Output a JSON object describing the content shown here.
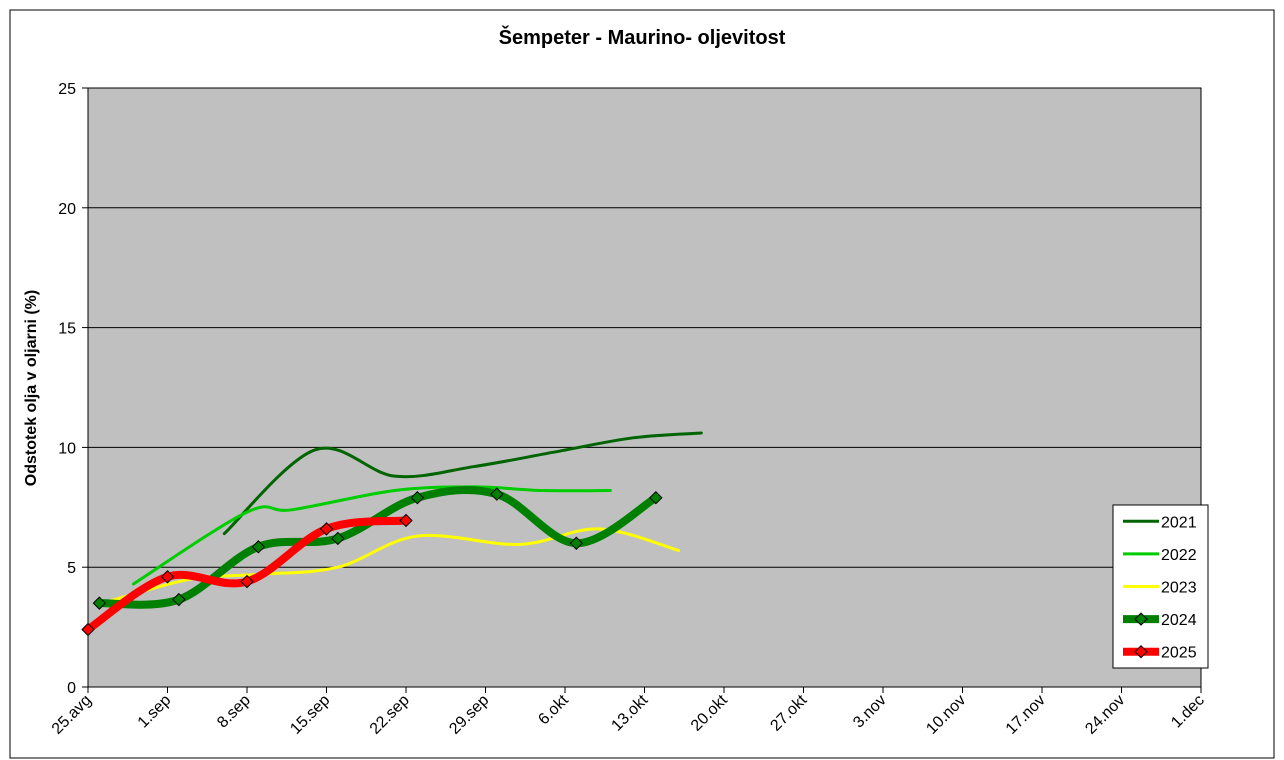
{
  "chart_data": {
    "type": "line",
    "title": "Šempeter - Maurino- oljevitost",
    "y_label": "Odstotek olja v oljarni (%)",
    "xlim": [
      0,
      98
    ],
    "xticks": [
      {
        "value": 0,
        "label": "25.avg"
      },
      {
        "value": 7,
        "label": "1.sep"
      },
      {
        "value": 14,
        "label": "8.sep"
      },
      {
        "value": 21,
        "label": "15.sep"
      },
      {
        "value": 28,
        "label": "22.sep"
      },
      {
        "value": 35,
        "label": "29.sep"
      },
      {
        "value": 42,
        "label": "6.okt"
      },
      {
        "value": 49,
        "label": "13.okt"
      },
      {
        "value": 56,
        "label": "20.okt"
      },
      {
        "value": 63,
        "label": "27.okt"
      },
      {
        "value": 70,
        "label": "3.nov"
      },
      {
        "value": 77,
        "label": "10.nov"
      },
      {
        "value": 84,
        "label": "17.nov"
      },
      {
        "value": 91,
        "label": "24.nov"
      },
      {
        "value": 98,
        "label": "1.dec"
      }
    ],
    "ylim": [
      0,
      25
    ],
    "yticks": [
      0,
      5,
      10,
      15,
      20,
      25
    ],
    "grid": true,
    "legend": "lower right",
    "series": [
      {
        "name": "2021",
        "color": "#006400",
        "width": 3,
        "markers": false,
        "x": [
          12,
          20,
          27,
          34,
          41,
          48,
          54
        ],
        "values": [
          6.4,
          9.9,
          8.8,
          9.2,
          9.8,
          10.4,
          10.6
        ]
      },
      {
        "name": "2022",
        "color": "#00cc00",
        "width": 3,
        "markers": false,
        "x": [
          4,
          14,
          18,
          27,
          34,
          40,
          46
        ],
        "values": [
          4.3,
          7.3,
          7.4,
          8.2,
          8.35,
          8.2,
          8.2
        ]
      },
      {
        "name": "2023",
        "color": "#ffff00",
        "width": 3,
        "markers": false,
        "x": [
          2,
          9,
          15,
          22,
          29,
          38,
          45,
          52
        ],
        "values": [
          3.6,
          4.5,
          4.7,
          5.0,
          6.3,
          5.95,
          6.6,
          5.7
        ]
      },
      {
        "name": "2024",
        "color": "#008000",
        "width": 8,
        "markers": true,
        "x": [
          1,
          8,
          15,
          22,
          29,
          36,
          43,
          50
        ],
        "values": [
          3.5,
          3.65,
          5.85,
          6.2,
          7.9,
          8.05,
          6.0,
          7.9
        ]
      },
      {
        "name": "2025",
        "color": "#ff0000",
        "width": 8,
        "markers": true,
        "x": [
          0,
          7,
          14,
          21,
          28
        ],
        "values": [
          2.4,
          4.6,
          4.4,
          6.6,
          6.95
        ]
      }
    ]
  }
}
